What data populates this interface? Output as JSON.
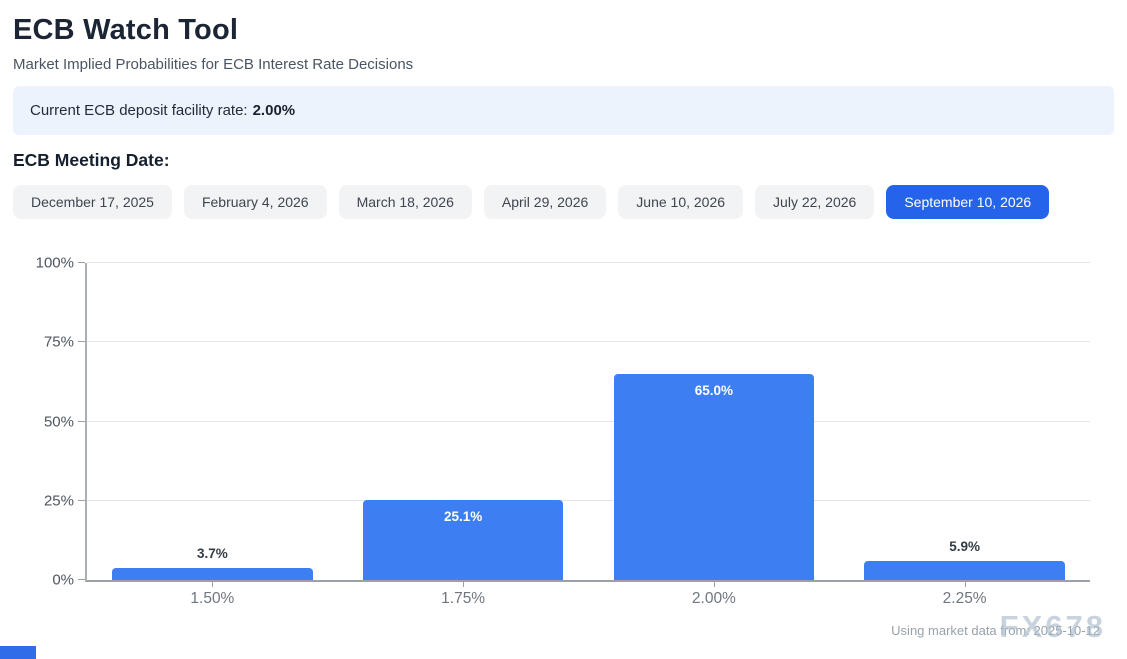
{
  "header": {
    "title": "ECB Watch Tool",
    "subtitle": "Market Implied Probabilities for ECB Interest Rate Decisions"
  },
  "banner": {
    "label_prefix": "Current ECB deposit facility rate:",
    "rate": "2.00%"
  },
  "meeting_dates": {
    "heading": "ECB Meeting Date:",
    "items": [
      {
        "label": "December 17, 2025",
        "selected": false
      },
      {
        "label": "February 4, 2026",
        "selected": false
      },
      {
        "label": "March 18, 2026",
        "selected": false
      },
      {
        "label": "April 29, 2026",
        "selected": false
      },
      {
        "label": "June 10, 2026",
        "selected": false
      },
      {
        "label": "July 22, 2026",
        "selected": false
      },
      {
        "label": "September 10, 2026",
        "selected": true
      }
    ]
  },
  "chart_data": {
    "type": "bar",
    "title": "",
    "xlabel": "",
    "ylabel": "",
    "categories": [
      "1.50%",
      "1.75%",
      "2.00%",
      "2.25%"
    ],
    "values": [
      3.7,
      25.1,
      65.0,
      5.9
    ],
    "value_labels": [
      "3.7%",
      "25.1%",
      "65.0%",
      "5.9%"
    ],
    "ylim": [
      0,
      100
    ],
    "yticks": [
      0,
      25,
      50,
      75,
      100
    ],
    "ytick_labels": [
      "0%",
      "25%",
      "50%",
      "75%",
      "100%"
    ],
    "grid": true,
    "legend": "none",
    "bar_color": "#3d7ff2",
    "label_inside_threshold": 10
  },
  "footer": {
    "source_text": "Using market data from: 2025-10-12",
    "watermark": "FX678"
  },
  "colors": {
    "accent_blue": "#2563eb",
    "bar_blue": "#3d7ff2",
    "banner_bg": "#ecf3fd"
  }
}
